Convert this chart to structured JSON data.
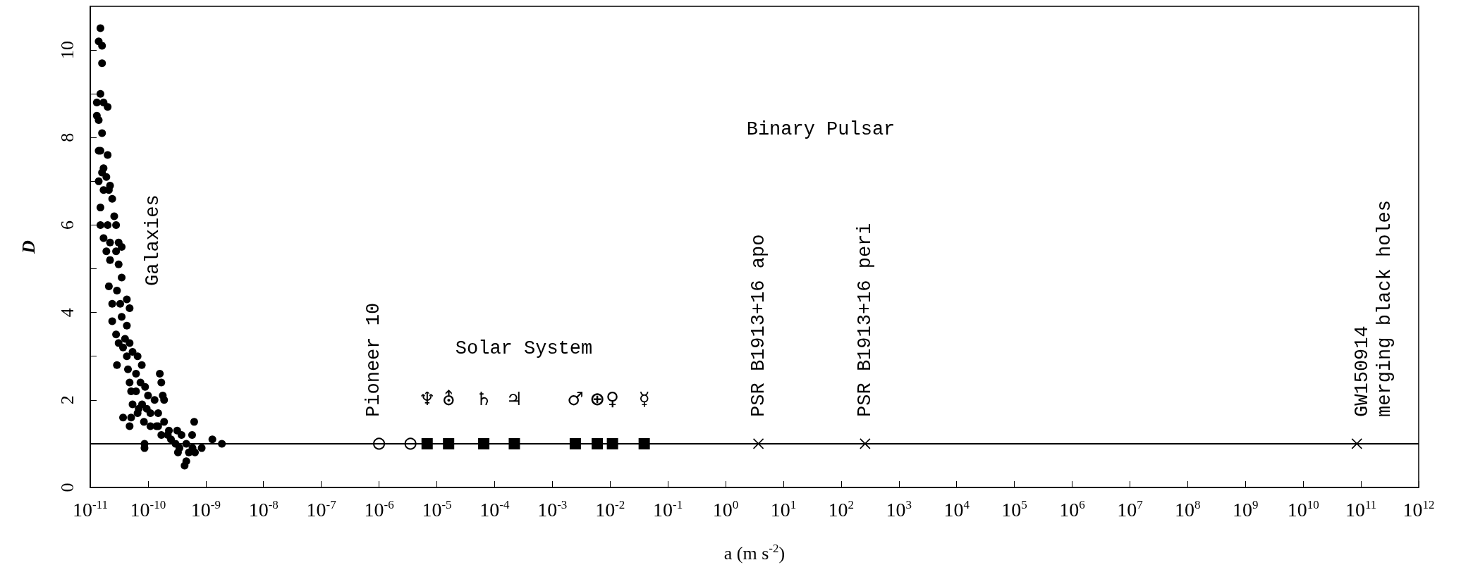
{
  "chart_data": {
    "type": "scatter",
    "xlabel": "a (m s$^{-2}$)",
    "ylabel": "D",
    "log": "x",
    "grid": false,
    "xlim": [
      1e-11,
      1000000000000.0
    ],
    "xticks": [
      {
        "value": 1e-11,
        "label": "10$^{-11}$"
      },
      {
        "value": 1e-10,
        "label": "10$^{-10}$"
      },
      {
        "value": 1e-09,
        "label": "10$^{-9}$"
      },
      {
        "value": 1e-08,
        "label": "10$^{-8}$"
      },
      {
        "value": 1e-07,
        "label": "10$^{-7}$"
      },
      {
        "value": 1e-06,
        "label": "10$^{-6}$"
      },
      {
        "value": 1e-05,
        "label": "10$^{-5}$"
      },
      {
        "value": 0.0001,
        "label": "10$^{-4}$"
      },
      {
        "value": 0.001,
        "label": "10$^{-3}$"
      },
      {
        "value": 0.01,
        "label": "10$^{-2}$"
      },
      {
        "value": 0.1,
        "label": "10$^{-1}$"
      },
      {
        "value": 1,
        "label": "10$^{0}$"
      },
      {
        "value": 10,
        "label": "10$^{1}$"
      },
      {
        "value": 100,
        "label": "10$^{2}$"
      },
      {
        "value": 1000,
        "label": "10$^{3}$"
      },
      {
        "value": 10000.0,
        "label": "10$^{4}$"
      },
      {
        "value": 100000.0,
        "label": "10$^{5}$"
      },
      {
        "value": 1000000.0,
        "label": "10$^{6}$"
      },
      {
        "value": 10000000.0,
        "label": "10$^{7}$"
      },
      {
        "value": 100000000.0,
        "label": "10$^{8}$"
      },
      {
        "value": 1000000000.0,
        "label": "10$^{9}$"
      },
      {
        "value": 10000000000.0,
        "label": "10$^{10}$"
      },
      {
        "value": 100000000000.0,
        "label": "10$^{11}$"
      },
      {
        "value": 1000000000000.0,
        "label": "10$^{12}$"
      }
    ],
    "ylim": [
      0,
      11
    ],
    "yticks": [
      0,
      {
        "value": 1,
        "label": null
      },
      2,
      {
        "value": 3,
        "label": null
      },
      4,
      {
        "value": 5,
        "label": null
      },
      6,
      {
        "value": 7,
        "label": null
      },
      8,
      {
        "value": 9,
        "label": null
      },
      10
    ],
    "ref_lines": [
      {
        "axis": "y",
        "value": 1,
        "color": "#000000",
        "line_style": "solid"
      }
    ],
    "series": [
      {
        "marker": "circle",
        "color": "#000000",
        "x": [
          1.5e-11,
          1.4e-11,
          1.6e-11,
          1.6e-11,
          1.5e-11,
          1.3e-11,
          1.7e-11,
          2e-11,
          1.3e-11,
          1.4e-11,
          1.6e-11,
          1.4e-11,
          1.5e-11,
          2e-11,
          1.7e-11,
          1.6e-11,
          1.9e-11,
          1.4e-11,
          2.2e-11,
          1.7e-11,
          2.1e-11,
          2.4e-11,
          1.5e-11,
          2.6e-11,
          1.5e-11,
          2e-11,
          2.8e-11,
          1.7e-11,
          2.2e-11,
          3.1e-11,
          1.9e-11,
          2.8e-11,
          3.5e-11,
          2.2e-11,
          3.1e-11,
          3.5e-11,
          2.1e-11,
          2.9e-11,
          4.3e-11,
          2.4e-11,
          3.3e-11,
          4.8e-11,
          2.4e-11,
          3.5e-11,
          4.3e-11,
          2.8e-11,
          4e-11,
          3.1e-11,
          4.8e-11,
          3.7e-11,
          5.4e-11,
          2.9e-11,
          4.3e-11,
          6.6e-11,
          4.5e-11,
          7.8e-11,
          6.2e-11,
          1.6e-10,
          1.7e-10,
          1.8e-10,
          1.9e-10,
          4.8e-11,
          7.4e-11,
          8.9e-11,
          5.1e-11,
          1e-10,
          1.3e-10,
          3.7e-11,
          5.1e-11,
          4.8e-11,
          6.9e-11,
          1.1e-10,
          1.5e-10,
          8.5e-11,
          1.4e-10,
          1.9e-10,
          2.3e-10,
          3.2e-10,
          3.8e-10,
          8.7e-11,
          8.7e-11,
          3.3e-10,
          4.6e-10,
          5.9e-10,
          4.6e-10,
          4.3e-10,
          6.3e-10,
          5.8e-10,
          6.5e-10,
          8.5e-10,
          1.3e-09,
          1.9e-09,
          2.5e-10,
          1.7e-10,
          1.1e-10,
          6.2e-11,
          7.9e-11,
          9.5e-11,
          5.4e-11,
          6.6e-11,
          1.5e-10,
          2.2e-10,
          3e-10,
          3.5e-10,
          5.1e-10
        ],
        "values": [
          10.5,
          10.2,
          10.1,
          9.7,
          9.0,
          8.8,
          8.8,
          8.7,
          8.5,
          8.4,
          8.1,
          7.7,
          7.7,
          7.6,
          7.3,
          7.2,
          7.1,
          7.0,
          6.9,
          6.8,
          6.8,
          6.6,
          6.4,
          6.2,
          6.0,
          6.0,
          6.0,
          5.7,
          5.6,
          5.6,
          5.4,
          5.4,
          5.5,
          5.2,
          5.1,
          4.8,
          4.6,
          4.5,
          4.3,
          4.2,
          4.2,
          4.1,
          3.8,
          3.9,
          3.7,
          3.5,
          3.4,
          3.3,
          3.3,
          3.2,
          3.1,
          2.8,
          3.0,
          3.0,
          2.7,
          2.8,
          2.6,
          2.6,
          2.4,
          2.1,
          2.0,
          2.4,
          2.4,
          2.3,
          2.2,
          2.1,
          2.0,
          1.6,
          1.6,
          1.4,
          1.8,
          1.7,
          1.7,
          1.5,
          1.4,
          1.5,
          1.3,
          1.3,
          1.2,
          1.0,
          0.9,
          0.8,
          1.0,
          0.9,
          0.6,
          0.5,
          1.5,
          1.2,
          0.8,
          0.9,
          1.1,
          1.0,
          1.1,
          1.2,
          1.4,
          2.2,
          1.9,
          1.8,
          1.9,
          1.7,
          1.4,
          1.2,
          1.0,
          0.9,
          0.8
        ]
      },
      {
        "marker": "open-circle",
        "color": "#000000",
        "x": [
          1e-06,
          3.5e-06
        ],
        "values": [
          1,
          1
        ]
      },
      {
        "marker": "square",
        "color": "#000000",
        "x": [
          6.8e-06,
          1.6e-05,
          6.5e-05,
          0.00022,
          0.0025,
          0.006,
          0.011,
          0.039
        ],
        "values": [
          1,
          1,
          1,
          1,
          1,
          1,
          1,
          1
        ]
      },
      {
        "marker": "cross",
        "color": "#000000",
        "x": [
          3.7,
          260,
          85000000000.0
        ],
        "values": [
          1,
          1,
          1
        ]
      }
    ],
    "annotations": [
      "Galaxies",
      "Pioneer 10",
      "Solar System",
      "Binary Pulsar",
      "PSR B1913+16 apo",
      "PSR B1913+16 peri",
      "GW150914\nmerging black holes",
      "♆",
      "⛢",
      "♄",
      "♃",
      "♂",
      "⊕",
      "♀",
      "☿"
    ]
  }
}
